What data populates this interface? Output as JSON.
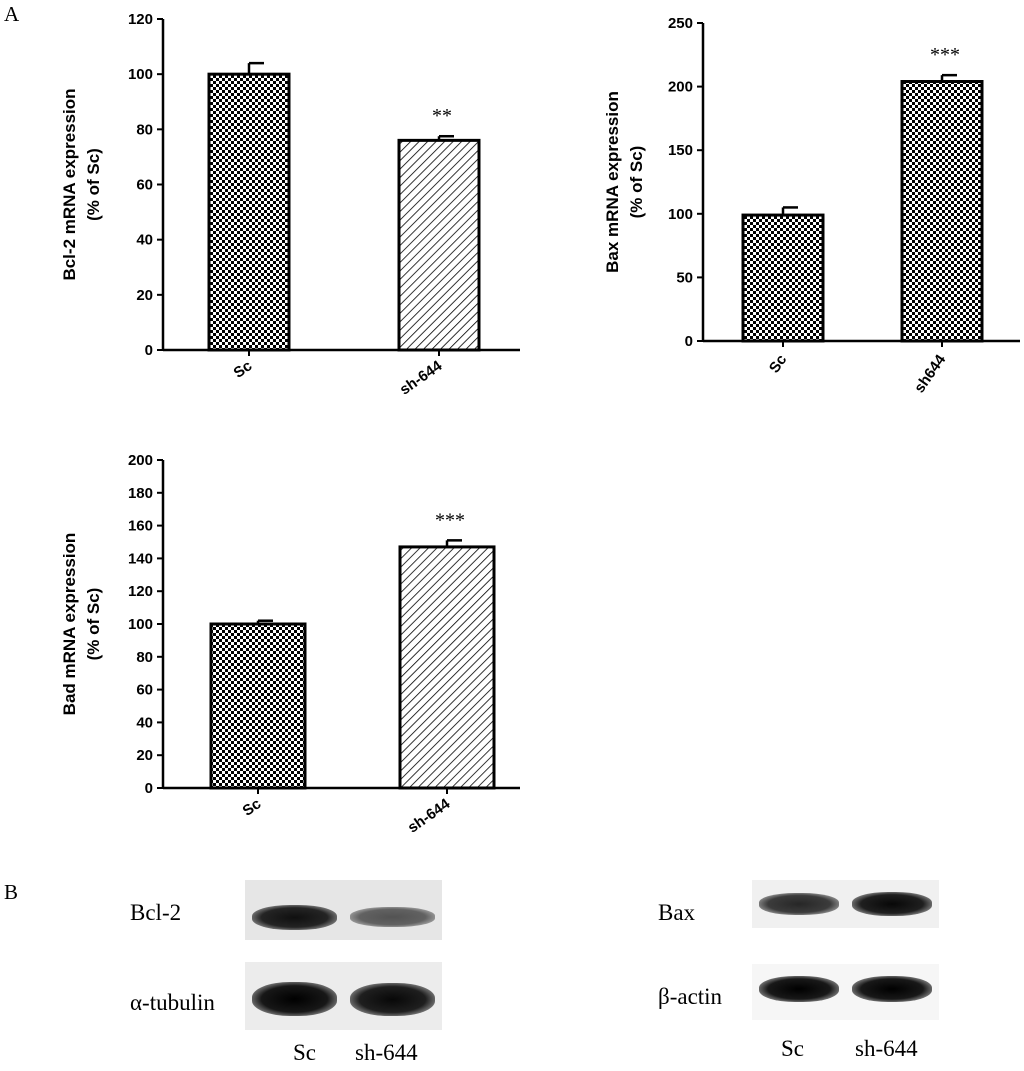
{
  "panel_labels": {
    "a": "A",
    "b": "B"
  },
  "chart_data": [
    {
      "type": "bar",
      "ylabel_line1": "Bcl-2 mRNA expression",
      "ylabel_line2": "(% of Sc)",
      "categories": [
        "Sc",
        "sh-644"
      ],
      "values": [
        100,
        76
      ],
      "errors": [
        4,
        1.5
      ],
      "significance": [
        "",
        "**"
      ],
      "patterns": [
        "checker",
        "hatch"
      ],
      "ylim": [
        0,
        120
      ],
      "yticks": [
        0,
        20,
        40,
        60,
        80,
        100,
        120
      ],
      "grid": false
    },
    {
      "type": "bar",
      "ylabel_line1": "Bax mRNA expression",
      "ylabel_line2": "(% of Sc)",
      "categories": [
        "Sc",
        "sh644"
      ],
      "values": [
        99,
        204
      ],
      "errors": [
        6,
        5
      ],
      "significance": [
        "",
        "***"
      ],
      "patterns": [
        "checker",
        "checker"
      ],
      "ylim": [
        0,
        250
      ],
      "yticks": [
        0,
        50,
        100,
        150,
        200,
        250
      ],
      "grid": false
    },
    {
      "type": "bar",
      "ylabel_line1": "Bad mRNA expression",
      "ylabel_line2": "(% of Sc)",
      "categories": [
        "Sc",
        "sh-644"
      ],
      "values": [
        100,
        147
      ],
      "errors": [
        2,
        4
      ],
      "significance": [
        "",
        "***"
      ],
      "patterns": [
        "checker",
        "hatch"
      ],
      "ylim": [
        0,
        200
      ],
      "yticks": [
        0,
        20,
        40,
        60,
        80,
        100,
        120,
        140,
        160,
        180,
        200
      ],
      "grid": false
    }
  ],
  "blots": {
    "left": {
      "rows": [
        {
          "label": "Bcl-2",
          "band_strength": [
            0.9,
            0.45
          ]
        },
        {
          "label": "α-tubulin",
          "band_strength": [
            1.0,
            0.95
          ]
        }
      ],
      "lanes": [
        "Sc",
        "sh-644"
      ]
    },
    "right": {
      "rows": [
        {
          "label": "Bax",
          "band_strength": [
            0.75,
            0.95
          ]
        },
        {
          "label": "β-actin",
          "band_strength": [
            1.0,
            1.0
          ]
        }
      ],
      "lanes": [
        "Sc",
        "sh-644"
      ]
    }
  }
}
